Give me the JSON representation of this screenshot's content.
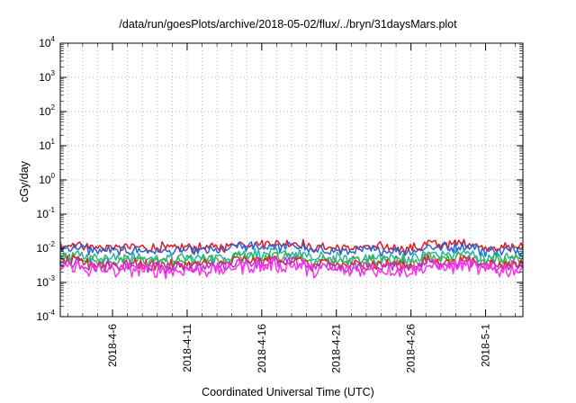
{
  "chart_data": {
    "type": "line",
    "title": "/data/run/goesPlots/archive/2018-05-02/flux/../bryn/31daysMars.plot",
    "xlabel": "Coordinated Universal Time (UTC)",
    "ylabel": "cGy/day",
    "y_scale": "log",
    "ylim": [
      0.0001,
      10000
    ],
    "xlim": [
      "2018-04-02T12:00",
      "2018-05-03T12:00"
    ],
    "y_ticks": [
      {
        "value": 0.0001,
        "base": "10",
        "exp": "-4"
      },
      {
        "value": 0.001,
        "base": "10",
        "exp": "-3"
      },
      {
        "value": 0.01,
        "base": "10",
        "exp": "-2"
      },
      {
        "value": 0.1,
        "base": "10",
        "exp": "-1"
      },
      {
        "value": 1,
        "base": "10",
        "exp": "0"
      },
      {
        "value": 10,
        "base": "10",
        "exp": "1"
      },
      {
        "value": 100,
        "base": "10",
        "exp": "2"
      },
      {
        "value": 1000,
        "base": "10",
        "exp": "3"
      },
      {
        "value": 10000,
        "base": "10",
        "exp": "4"
      }
    ],
    "x_ticks": [
      "2018-4-6",
      "2018-4-11",
      "2018-4-16",
      "2018-4-21",
      "2018-4-26",
      "2018-5-1"
    ],
    "x_tick_dates": [
      "2018-04-06",
      "2018-04-11",
      "2018-04-16",
      "2018-04-21",
      "2018-04-26",
      "2018-05-01"
    ],
    "grid": true,
    "legend": "none",
    "series": [
      {
        "color": "#e41a1c",
        "level": 0.0105,
        "noise": 0.12
      },
      {
        "color": "#2a62d8",
        "level": 0.0085,
        "noise": 0.12
      },
      {
        "color": "#24b4a4",
        "level": 0.0052,
        "noise": 0.13
      },
      {
        "color": "#3cb44b",
        "level": 0.0043,
        "noise": 0.13
      },
      {
        "color": "#d62728",
        "level": 0.0033,
        "noise": 0.14
      },
      {
        "color": "#b833d6",
        "level": 0.0029,
        "noise": 0.15
      },
      {
        "color": "#ff33ee",
        "level": 0.0023,
        "noise": 0.2
      }
    ]
  }
}
